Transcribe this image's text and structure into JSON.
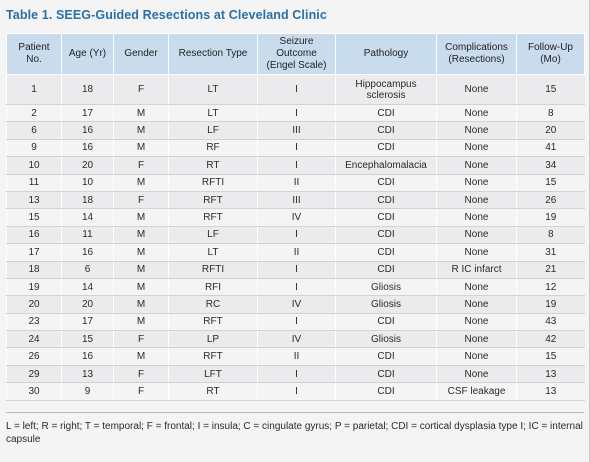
{
  "title": "Table 1. SEEG-Guided Resections at Cleveland Clinic",
  "headers": {
    "patient": "Patient\nNo.",
    "age": "Age (Yr)",
    "gender": "Gender",
    "resection": "Resection Type",
    "seizure": "Seizure\nOutcome\n(Engel Scale)",
    "pathology": "Pathology",
    "complications": "Complications\n(Resections)",
    "followup": "Follow-Up\n(Mo)"
  },
  "rows": [
    {
      "patient": "1",
      "age": "18",
      "gender": "F",
      "resection": "LT",
      "seizure": "I",
      "pathology": "Hippocampus sclerosis",
      "complications": "None",
      "followup": "15"
    },
    {
      "patient": "2",
      "age": "17",
      "gender": "M",
      "resection": "LT",
      "seizure": "I",
      "pathology": "CDI",
      "complications": "None",
      "followup": "8"
    },
    {
      "patient": "6",
      "age": "16",
      "gender": "M",
      "resection": "LF",
      "seizure": "III",
      "pathology": "CDI",
      "complications": "None",
      "followup": "20"
    },
    {
      "patient": "9",
      "age": "16",
      "gender": "M",
      "resection": "RF",
      "seizure": "I",
      "pathology": "CDI",
      "complications": "None",
      "followup": "41"
    },
    {
      "patient": "10",
      "age": "20",
      "gender": "F",
      "resection": "RT",
      "seizure": "I",
      "pathology": "Encephalomalacia",
      "complications": "None",
      "followup": "34"
    },
    {
      "patient": "11",
      "age": "10",
      "gender": "M",
      "resection": "RFTI",
      "seizure": "II",
      "pathology": "CDI",
      "complications": "None",
      "followup": "15"
    },
    {
      "patient": "13",
      "age": "18",
      "gender": "F",
      "resection": "RFT",
      "seizure": "III",
      "pathology": "CDI",
      "complications": "None",
      "followup": "26"
    },
    {
      "patient": "15",
      "age": "14",
      "gender": "M",
      "resection": "RFT",
      "seizure": "IV",
      "pathology": "CDI",
      "complications": "None",
      "followup": "19"
    },
    {
      "patient": "16",
      "age": "11",
      "gender": "M",
      "resection": "LF",
      "seizure": "I",
      "pathology": "CDI",
      "complications": "None",
      "followup": "8"
    },
    {
      "patient": "17",
      "age": "16",
      "gender": "M",
      "resection": "LT",
      "seizure": "II",
      "pathology": "CDI",
      "complications": "None",
      "followup": "31"
    },
    {
      "patient": "18",
      "age": "6",
      "gender": "M",
      "resection": "RFTI",
      "seizure": "I",
      "pathology": "CDI",
      "complications": "R IC infarct",
      "followup": "21"
    },
    {
      "patient": "19",
      "age": "14",
      "gender": "M",
      "resection": "RFI",
      "seizure": "I",
      "pathology": "Gliosis",
      "complications": "None",
      "followup": "12"
    },
    {
      "patient": "20",
      "age": "20",
      "gender": "M",
      "resection": "RC",
      "seizure": "IV",
      "pathology": "Gliosis",
      "complications": "None",
      "followup": "19"
    },
    {
      "patient": "23",
      "age": "17",
      "gender": "M",
      "resection": "RFT",
      "seizure": "I",
      "pathology": "CDI",
      "complications": "None",
      "followup": "43"
    },
    {
      "patient": "24",
      "age": "15",
      "gender": "F",
      "resection": "LP",
      "seizure": "IV",
      "pathology": "Gliosis",
      "complications": "None",
      "followup": "42"
    },
    {
      "patient": "26",
      "age": "16",
      "gender": "M",
      "resection": "RFT",
      "seizure": "II",
      "pathology": "CDI",
      "complications": "None",
      "followup": "15"
    },
    {
      "patient": "29",
      "age": "13",
      "gender": "F",
      "resection": "LFT",
      "seizure": "I",
      "pathology": "CDI",
      "complications": "None",
      "followup": "13"
    },
    {
      "patient": "30",
      "age": "9",
      "gender": "F",
      "resection": "RT",
      "seizure": "I",
      "pathology": "CDI",
      "complications": "CSF leakage",
      "followup": "13"
    }
  ],
  "footnote": "L = left; R = right; T = temporal; F = frontal; I = insula; C = cingulate gyrus; P = parietal; CDI = cortical dysplasia type I; IC = internal capsule",
  "colors": {
    "title": "#2a6fa8",
    "header_bg": "#c9dcee",
    "row_alt": "#ebebed",
    "page_bg": "#f4f4f5"
  }
}
